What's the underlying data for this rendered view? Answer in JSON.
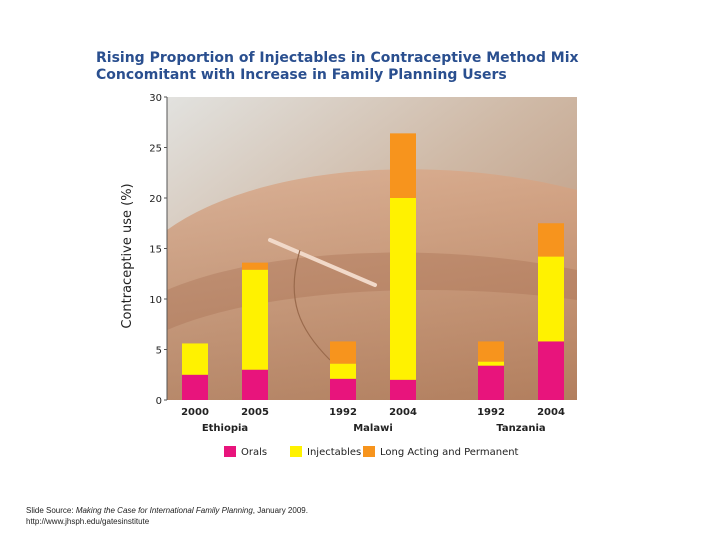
{
  "chart_data": {
    "type": "bar",
    "stacked": true,
    "title": "Rising Proportion of Injectables in Contraceptive Method Mix",
    "subtitle": "Concomitant with Increase in Family Planning Users",
    "ylabel": "Contraceptive use (%)",
    "ylim": [
      0,
      30
    ],
    "yticks": [
      "0",
      "5",
      "10",
      "15",
      "20",
      "25",
      "30"
    ],
    "groups": [
      {
        "country": "Ethiopia",
        "years": [
          "2000",
          "2005"
        ]
      },
      {
        "country": "Malawi",
        "years": [
          "1992",
          "2004"
        ]
      },
      {
        "country": "Tanzania",
        "years": [
          "1992",
          "2004"
        ]
      }
    ],
    "categories": [
      "2000",
      "2005",
      "1992",
      "2004",
      "1992",
      "2004"
    ],
    "series": [
      {
        "name": "Orals",
        "color": "#e8147c",
        "values": [
          2.5,
          3.0,
          2.1,
          2.0,
          3.4,
          5.8
        ]
      },
      {
        "name": "Injectables",
        "color": "#fff200",
        "values": [
          3.1,
          9.9,
          1.5,
          18.0,
          0.4,
          8.4
        ]
      },
      {
        "name": "Long Acting and Permanent",
        "color": "#f7941d",
        "values": [
          0.0,
          0.7,
          2.2,
          6.4,
          2.0,
          3.3
        ]
      }
    ],
    "legend_position": "bottom"
  },
  "footer": {
    "prefix": "Slide Source: ",
    "publication": "Making the Case for International Family Planning",
    "suffix": ", January 2009.",
    "url": "http://www.jhsph.edu/gatesinstitute"
  }
}
